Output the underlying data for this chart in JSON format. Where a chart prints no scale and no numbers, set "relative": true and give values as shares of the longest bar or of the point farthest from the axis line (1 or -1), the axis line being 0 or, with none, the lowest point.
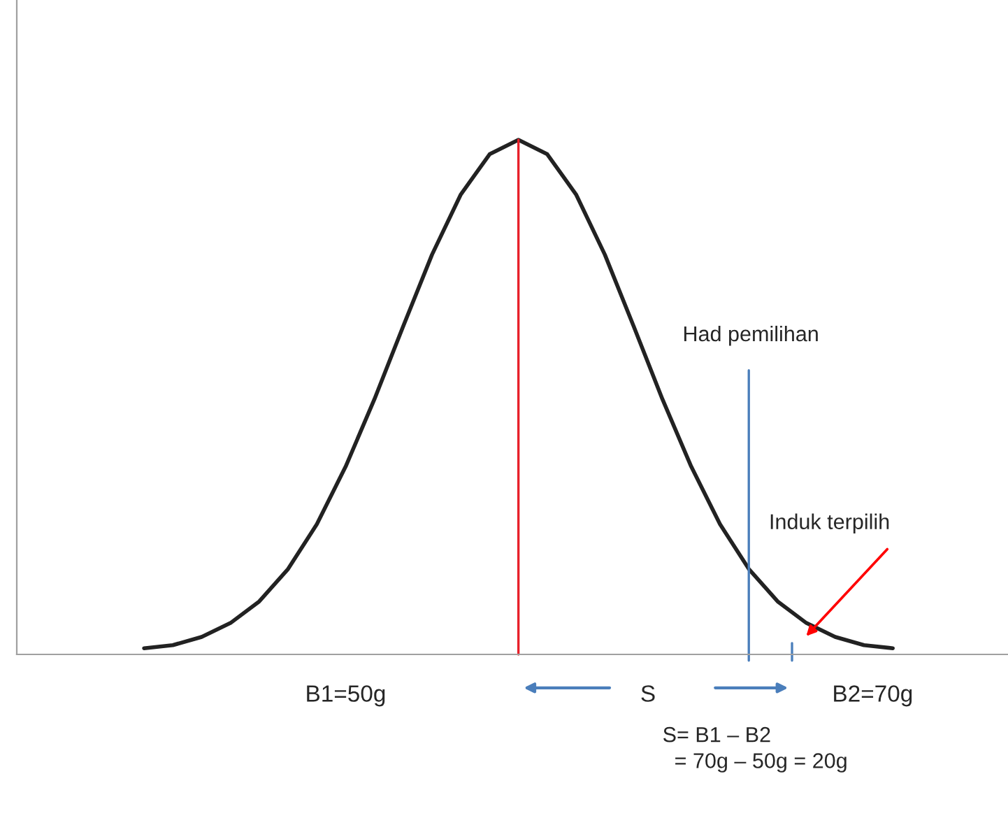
{
  "chart_data": {
    "type": "line",
    "relative": true,
    "categories": [
      null,
      null,
      null,
      null,
      null,
      null,
      null,
      null,
      null,
      null,
      null,
      null,
      null,
      null,
      null,
      null,
      null,
      null,
      null,
      null,
      null,
      null,
      null,
      null,
      null,
      null,
      null
    ],
    "series": [
      {
        "color": "#222222",
        "values": [
          0.012,
          0.018,
          0.034,
          0.061,
          0.103,
          0.166,
          0.253,
          0.365,
          0.496,
          0.638,
          0.777,
          0.894,
          0.972,
          1,
          0.972,
          0.894,
          0.777,
          0.638,
          0.496,
          0.365,
          0.253,
          0.166,
          0.103,
          0.061,
          0.034,
          0.018,
          0.012
        ]
      }
    ],
    "annotations": [
      "Induk terpilih",
      "B1=50g",
      "S",
      "B2=70g",
      "S= B1 – B2\n  = 70g – 50g = 20g",
      "Had pemilihan"
    ],
    "marker": "none",
    "line_style": "solid"
  }
}
